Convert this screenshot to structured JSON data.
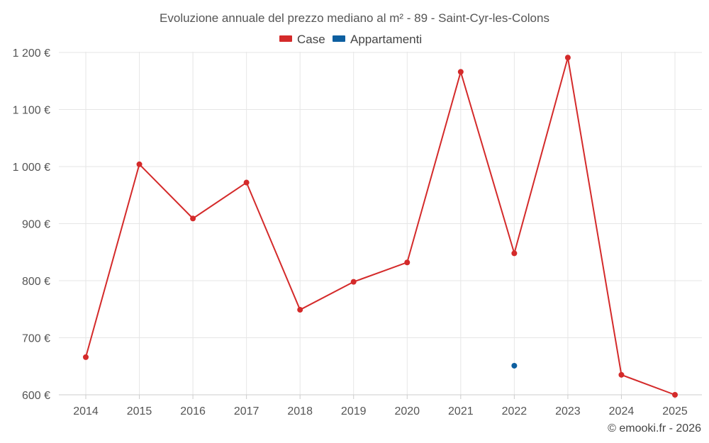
{
  "chart_data": {
    "type": "line",
    "title": "Evoluzione annuale del prezzo mediano al m² - 89 - Saint-Cyr-les-Colons",
    "categories": [
      "2014",
      "2015",
      "2016",
      "2017",
      "2018",
      "2019",
      "2020",
      "2021",
      "2022",
      "2023",
      "2024",
      "2025"
    ],
    "y_ticks": [
      600,
      700,
      800,
      900,
      1000,
      1100,
      1200
    ],
    "y_tick_labels": [
      "600 €",
      "700 €",
      "800 €",
      "900 €",
      "1 000 €",
      "1 100 €",
      "1 200 €"
    ],
    "ylim": [
      600,
      1220
    ],
    "grid": true,
    "legend_position": "top-center",
    "series": [
      {
        "name": "Case",
        "color": "#d42a2a",
        "values": [
          666,
          1004,
          909,
          972,
          749,
          798,
          832,
          1166,
          848,
          1191,
          635,
          600
        ]
      },
      {
        "name": "Appartamenti",
        "color": "#0d5fa0",
        "values": [
          null,
          null,
          null,
          null,
          null,
          null,
          null,
          null,
          651,
          null,
          null,
          null
        ]
      }
    ]
  },
  "credit": "© emooki.fr - 2026"
}
